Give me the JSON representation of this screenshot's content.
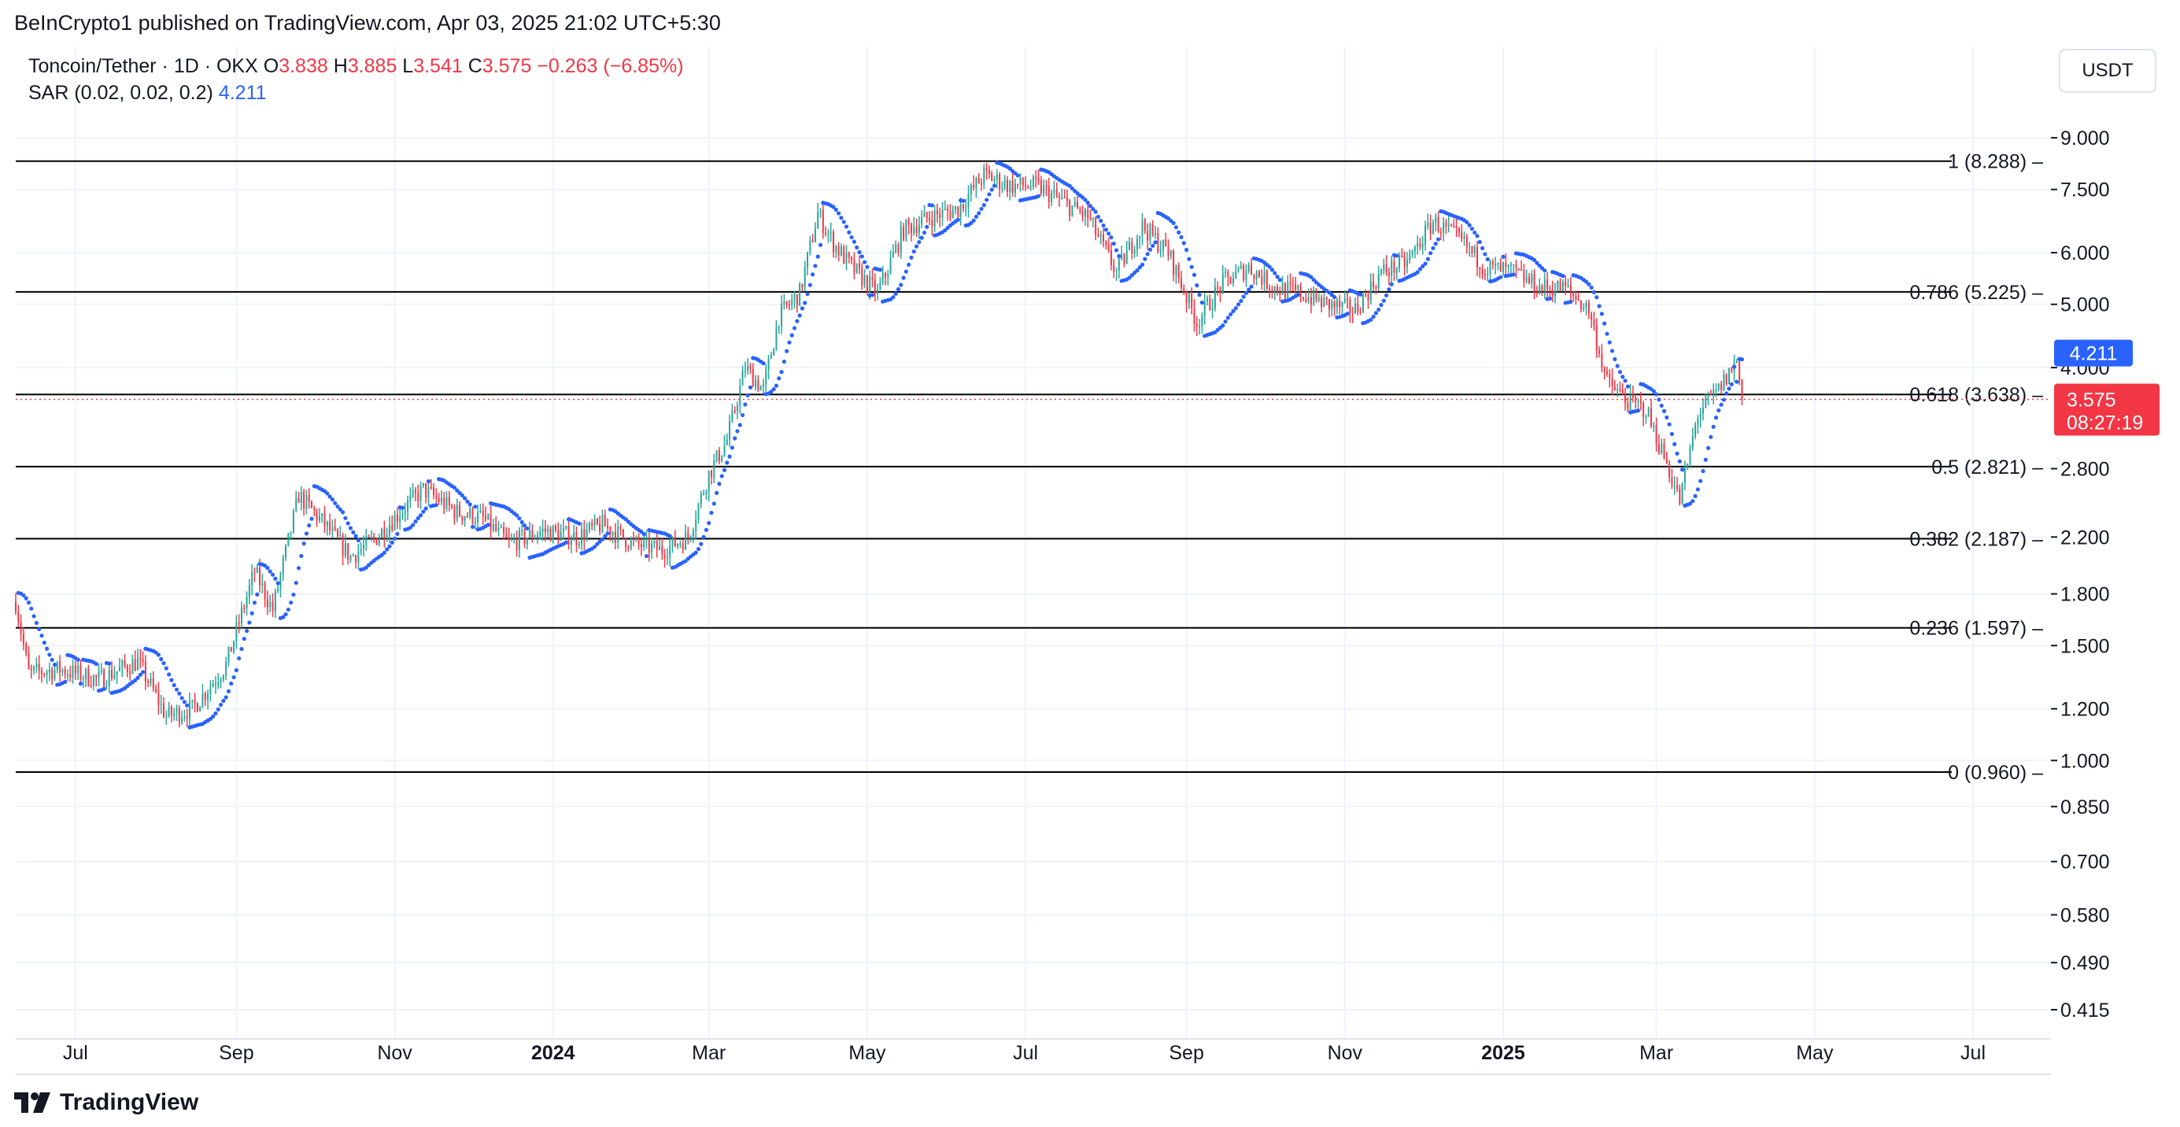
{
  "header": {
    "published": "BeInCrypto1 published on TradingView.com, Apr 03, 2025 21:02 UTC+5:30"
  },
  "legend": {
    "symbol": "Toncoin/Tether · 1D · OKX",
    "o_label": "O",
    "o_value": "3.838",
    "h_label": "H",
    "h_value": "3.885",
    "l_label": "L",
    "l_value": "3.541",
    "c_label": "C",
    "c_value": "3.575",
    "change": "−0.263 (−6.85%)",
    "indicator": "SAR (0.02, 0.02, 0.2)",
    "indicator_value": "4.211"
  },
  "currency_button": "USDT",
  "branding": "TradingView",
  "colors": {
    "up": "#26A69A",
    "down": "#F23645",
    "sar": "#2962FF",
    "fib_line": "#000000",
    "grid": "#F0F3FA"
  },
  "chart_data": {
    "type": "candlestick",
    "title": "Toncoin/Tether · 1D · OKX",
    "y_scale": "log",
    "ylim": [
      0.385,
      10.2
    ],
    "y_ticks": [
      "9.000",
      "7.500",
      "6.000",
      "5.000",
      "4.000",
      "2.800",
      "2.200",
      "1.800",
      "1.500",
      "1.200",
      "1.000",
      "0.850",
      "0.700",
      "0.580",
      "0.490",
      "0.415"
    ],
    "x_ticks": [
      {
        "label": "Jul",
        "date": "2023-07-01",
        "bold": false
      },
      {
        "label": "Sep",
        "date": "2023-09-01",
        "bold": false
      },
      {
        "label": "Nov",
        "date": "2023-11-01",
        "bold": false
      },
      {
        "label": "2024",
        "date": "2024-01-01",
        "bold": true
      },
      {
        "label": "Mar",
        "date": "2024-03-01",
        "bold": false
      },
      {
        "label": "May",
        "date": "2024-05-01",
        "bold": false
      },
      {
        "label": "Jul",
        "date": "2024-07-01",
        "bold": false
      },
      {
        "label": "Sep",
        "date": "2024-09-01",
        "bold": false
      },
      {
        "label": "Nov",
        "date": "2024-11-01",
        "bold": false
      },
      {
        "label": "2025",
        "date": "2025-01-01",
        "bold": true
      },
      {
        "label": "Mar",
        "date": "2025-03-01",
        "bold": false
      },
      {
        "label": "May",
        "date": "2025-05-01",
        "bold": false
      },
      {
        "label": "Jul",
        "date": "2025-07-01",
        "bold": false
      }
    ],
    "x_range": [
      "2023-06-08",
      "2025-07-31"
    ],
    "fib_levels": [
      {
        "label": "1 (8.288)",
        "value": 8.288
      },
      {
        "label": "0.786 (5.225)",
        "value": 5.225
      },
      {
        "label": "0.618 (3.638)",
        "value": 3.638
      },
      {
        "label": "0.5 (2.821)",
        "value": 2.821
      },
      {
        "label": "0.382 (2.187)",
        "value": 2.187
      },
      {
        "label": "0.236 (1.597)",
        "value": 1.597
      },
      {
        "label": "0 (0.960)",
        "value": 0.96
      }
    ],
    "price_anchors": [
      [
        "2023-06-08",
        1.75
      ],
      [
        "2023-06-13",
        1.36
      ],
      [
        "2023-06-25",
        1.38
      ],
      [
        "2023-07-10",
        1.33
      ],
      [
        "2023-07-25",
        1.42
      ],
      [
        "2023-08-05",
        1.17
      ],
      [
        "2023-08-15",
        1.2
      ],
      [
        "2023-08-28",
        1.4
      ],
      [
        "2023-09-08",
        1.95
      ],
      [
        "2023-09-15",
        1.7
      ],
      [
        "2023-09-25",
        2.55
      ],
      [
        "2023-10-05",
        2.3
      ],
      [
        "2023-10-15",
        2.05
      ],
      [
        "2023-10-25",
        2.2
      ],
      [
        "2023-11-05",
        2.45
      ],
      [
        "2023-11-12",
        2.6
      ],
      [
        "2023-11-25",
        2.4
      ],
      [
        "2023-12-05",
        2.35
      ],
      [
        "2023-12-15",
        2.15
      ],
      [
        "2023-12-28",
        2.25
      ],
      [
        "2024-01-10",
        2.2
      ],
      [
        "2024-01-20",
        2.3
      ],
      [
        "2024-02-01",
        2.15
      ],
      [
        "2024-02-12",
        2.1
      ],
      [
        "2024-02-22",
        2.2
      ],
      [
        "2024-03-01",
        2.75
      ],
      [
        "2024-03-08",
        3.1
      ],
      [
        "2024-03-15",
        4.0
      ],
      [
        "2024-03-22",
        3.7
      ],
      [
        "2024-03-28",
        4.8
      ],
      [
        "2024-04-05",
        5.2
      ],
      [
        "2024-04-12",
        6.9
      ],
      [
        "2024-04-18",
        6.2
      ],
      [
        "2024-04-25",
        5.7
      ],
      [
        "2024-05-05",
        5.2
      ],
      [
        "2024-05-15",
        6.5
      ],
      [
        "2024-05-25",
        6.8
      ],
      [
        "2024-06-05",
        7.0
      ],
      [
        "2024-06-15",
        7.9
      ],
      [
        "2024-06-25",
        7.6
      ],
      [
        "2024-07-05",
        7.6
      ],
      [
        "2024-07-15",
        7.2
      ],
      [
        "2024-07-25",
        6.8
      ],
      [
        "2024-08-05",
        5.6
      ],
      [
        "2024-08-15",
        6.6
      ],
      [
        "2024-08-25",
        6.0
      ],
      [
        "2024-09-05",
        4.7
      ],
      [
        "2024-09-15",
        5.4
      ],
      [
        "2024-09-25",
        5.7
      ],
      [
        "2024-10-05",
        5.3
      ],
      [
        "2024-10-15",
        5.2
      ],
      [
        "2024-10-25",
        5.0
      ],
      [
        "2024-11-05",
        4.9
      ],
      [
        "2024-11-15",
        5.6
      ],
      [
        "2024-11-25",
        5.8
      ],
      [
        "2024-12-05",
        6.7
      ],
      [
        "2024-12-15",
        6.3
      ],
      [
        "2024-12-25",
        5.7
      ],
      [
        "2025-01-05",
        5.6
      ],
      [
        "2025-01-15",
        5.3
      ],
      [
        "2025-01-25",
        5.3
      ],
      [
        "2025-02-03",
        4.9
      ],
      [
        "2025-02-10",
        3.8
      ],
      [
        "2025-02-18",
        3.55
      ],
      [
        "2025-02-25",
        3.45
      ],
      [
        "2025-03-05",
        2.85
      ],
      [
        "2025-03-10",
        2.5
      ],
      [
        "2025-03-17",
        3.4
      ],
      [
        "2025-03-25",
        3.7
      ],
      [
        "2025-04-01",
        4.1
      ],
      [
        "2025-04-03",
        3.575
      ]
    ],
    "last_price": 3.575,
    "countdown": "08:27:19",
    "sar_value": 4.211
  }
}
